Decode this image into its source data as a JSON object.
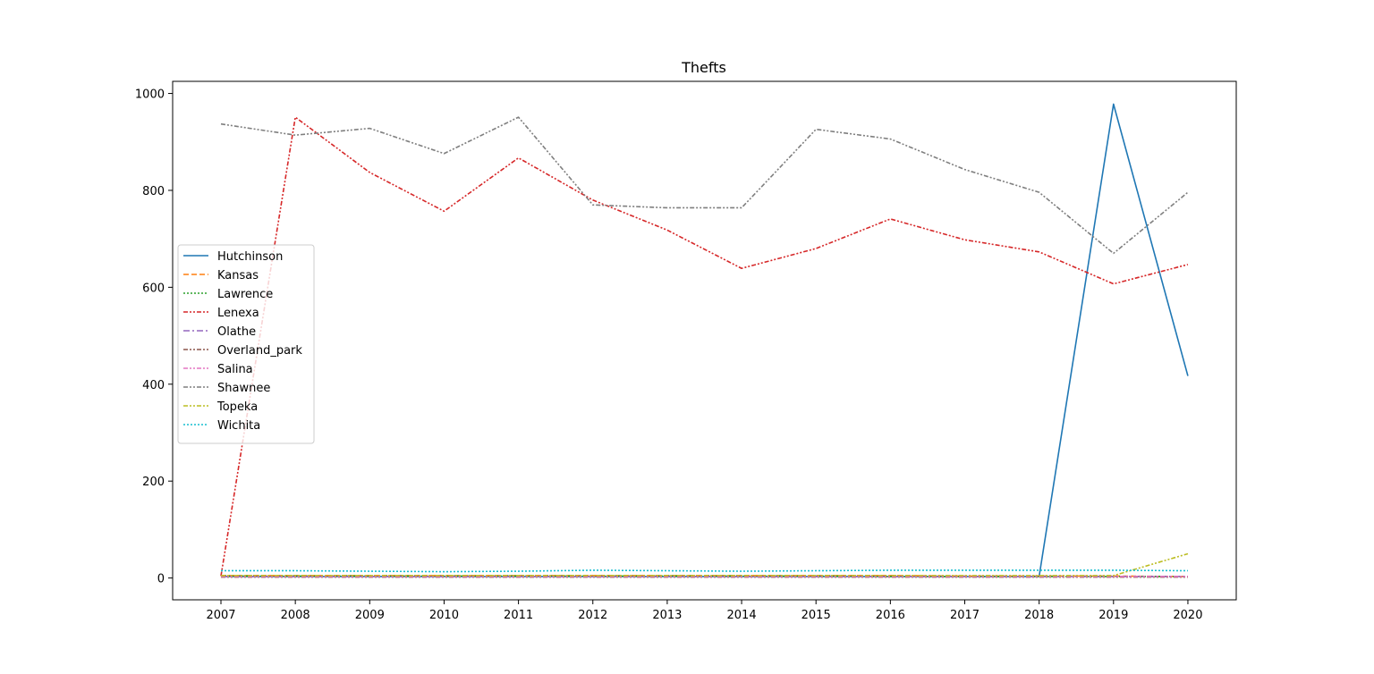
{
  "chart_data": {
    "type": "line",
    "title": "Thefts",
    "xlabel": "",
    "ylabel": "",
    "x": [
      "2007",
      "2008",
      "2009",
      "2010",
      "2011",
      "2012",
      "2013",
      "2014",
      "2015",
      "2016",
      "2017",
      "2018",
      "2019",
      "2020"
    ],
    "ylim": [
      -45,
      1025
    ],
    "yticks": [
      0,
      200,
      400,
      600,
      800,
      1000
    ],
    "grid": false,
    "legend_position": "center-left",
    "series": [
      {
        "name": "Hutchinson",
        "color": "#1f77b4",
        "dash": "solid",
        "values": [
          3,
          3,
          3,
          3,
          3,
          3,
          3,
          3,
          3,
          3,
          3,
          3,
          978,
          417
        ]
      },
      {
        "name": "Kansas",
        "color": "#ff7f0e",
        "dash": "dashed",
        "values": [
          5,
          5,
          5,
          5,
          5,
          5,
          5,
          5,
          5,
          5,
          4,
          4,
          4,
          3
        ]
      },
      {
        "name": "Lawrence",
        "color": "#2ca02c",
        "dash": "dotted",
        "values": [
          4,
          4,
          4,
          4,
          4,
          4,
          4,
          4,
          4,
          3,
          3,
          3,
          3,
          3
        ]
      },
      {
        "name": "Lenexa",
        "color": "#d62728",
        "dash": "dashdotdot",
        "values": [
          4,
          951,
          837,
          757,
          867,
          780,
          718,
          639,
          680,
          741,
          698,
          673,
          607,
          647
        ]
      },
      {
        "name": "Olathe",
        "color": "#9467bd",
        "dash": "dashdot",
        "values": [
          3,
          3,
          3,
          3,
          3,
          3,
          3,
          3,
          3,
          3,
          3,
          3,
          3,
          3
        ]
      },
      {
        "name": "Overland_park",
        "color": "#8c564b",
        "dash": "dashdotdot",
        "values": [
          2,
          2,
          2,
          2,
          2,
          2,
          2,
          2,
          2,
          2,
          2,
          2,
          2,
          2
        ]
      },
      {
        "name": "Salina",
        "color": "#e377c2",
        "dash": "dashdotdot",
        "values": [
          3,
          3,
          3,
          3,
          3,
          3,
          3,
          3,
          3,
          3,
          3,
          3,
          3,
          3
        ]
      },
      {
        "name": "Shawnee",
        "color": "#7f7f7f",
        "dash": "dashdotdot",
        "values": [
          937,
          914,
          928,
          876,
          951,
          770,
          764,
          764,
          926,
          906,
          843,
          796,
          670,
          796
        ]
      },
      {
        "name": "Topeka",
        "color": "#bcbd22",
        "dash": "dashdotdot",
        "values": [
          5,
          5,
          5,
          5,
          5,
          5,
          5,
          5,
          5,
          5,
          5,
          5,
          5,
          50
        ]
      },
      {
        "name": "Wichita",
        "color": "#17becf",
        "dash": "dotted",
        "values": [
          15,
          15,
          14,
          13,
          14,
          16,
          15,
          14,
          15,
          16,
          16,
          16,
          16,
          15
        ]
      }
    ]
  }
}
